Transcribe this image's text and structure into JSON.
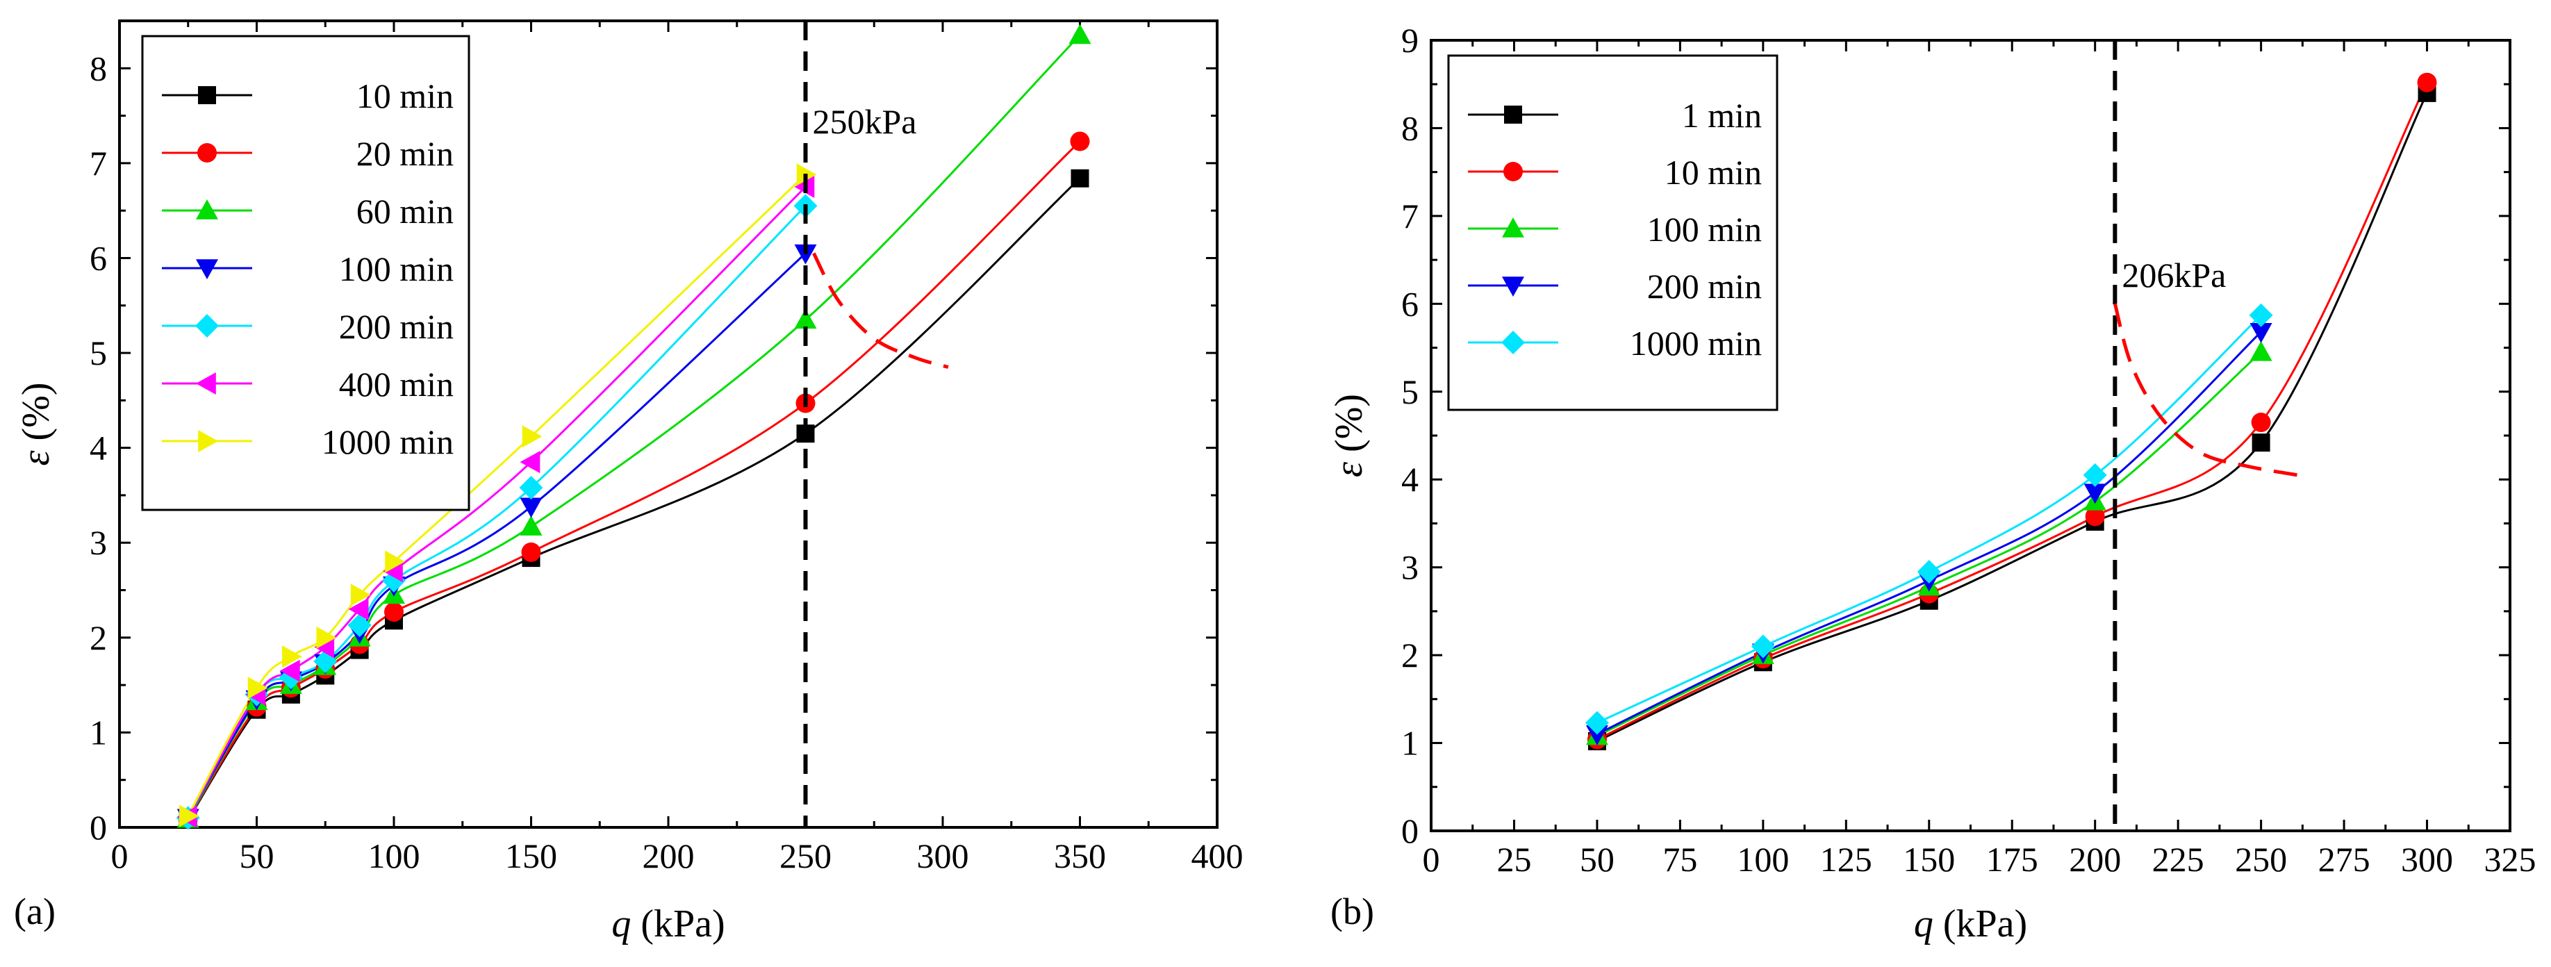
{
  "colors": {
    "black": "#000000",
    "red": "#ff0000",
    "green": "#00dd00",
    "blue": "#0000ee",
    "cyan": "#00e5ff",
    "magenta": "#ff00ff",
    "yellow": "#f2f200"
  },
  "chart_data": [
    {
      "type": "line",
      "panel_label": "(a)",
      "xlabel_var": "q",
      "xlabel_unit": " (kPa)",
      "ylabel_var": "ε",
      "ylabel_unit": " (%)",
      "xlim": [
        0,
        400
      ],
      "ylim": [
        0,
        8.5
      ],
      "xticks": [
        0,
        50,
        100,
        150,
        200,
        250,
        300,
        350,
        400
      ],
      "yticks": [
        0,
        1,
        2,
        3,
        4,
        5,
        6,
        7,
        8
      ],
      "vline": {
        "x": 250,
        "label": "250kPa"
      },
      "red_curve": [
        [
          253,
          6.05
        ],
        [
          262,
          5.55
        ],
        [
          275,
          5.15
        ],
        [
          290,
          4.95
        ],
        [
          302,
          4.85
        ]
      ],
      "legend_position": "top-left",
      "series": [
        {
          "name": "10 min",
          "marker": "square",
          "color": "#000000",
          "x": [
            25,
            50,
            62.5,
            75,
            87.5,
            100,
            150,
            250,
            350
          ],
          "y": [
            0.08,
            1.24,
            1.4,
            1.6,
            1.87,
            2.18,
            2.84,
            4.15,
            6.84
          ]
        },
        {
          "name": "20 min",
          "marker": "circle",
          "color": "#ff0000",
          "x": [
            25,
            50,
            62.5,
            75,
            87.5,
            100,
            150,
            250,
            350
          ],
          "y": [
            0.09,
            1.27,
            1.47,
            1.67,
            1.93,
            2.27,
            2.9,
            4.47,
            7.23
          ]
        },
        {
          "name": "60 min",
          "marker": "triangle-up",
          "color": "#00dd00",
          "x": [
            25,
            50,
            62.5,
            75,
            87.5,
            100,
            150,
            250,
            350
          ],
          "y": [
            0.09,
            1.33,
            1.5,
            1.7,
            2.0,
            2.45,
            3.17,
            5.35,
            8.35
          ]
        },
        {
          "name": "100 min",
          "marker": "triangle-down",
          "color": "#0000ee",
          "x": [
            25,
            50,
            62.5,
            75,
            87.5,
            100,
            150,
            250
          ],
          "y": [
            0.1,
            1.35,
            1.55,
            1.73,
            2.05,
            2.55,
            3.38,
            6.05
          ]
        },
        {
          "name": "200 min",
          "marker": "diamond",
          "color": "#00e5ff",
          "x": [
            25,
            50,
            62.5,
            75,
            87.5,
            100,
            150,
            250
          ],
          "y": [
            0.1,
            1.4,
            1.58,
            1.75,
            2.13,
            2.6,
            3.58,
            6.55
          ]
        },
        {
          "name": "400 min",
          "marker": "triangle-left",
          "color": "#ff00ff",
          "x": [
            25,
            50,
            62.5,
            75,
            87.5,
            100,
            150,
            250
          ],
          "y": [
            0.11,
            1.4,
            1.65,
            1.9,
            2.3,
            2.7,
            3.85,
            6.75
          ]
        },
        {
          "name": "1000 min",
          "marker": "triangle-right",
          "color": "#f2f200",
          "x": [
            25,
            50,
            62.5,
            75,
            87.5,
            100,
            150,
            250
          ],
          "y": [
            0.12,
            1.47,
            1.8,
            2.0,
            2.45,
            2.8,
            4.12,
            6.88
          ]
        }
      ]
    },
    {
      "type": "line",
      "panel_label": "(b)",
      "xlabel_var": "q",
      "xlabel_unit": " (kPa)",
      "ylabel_var": "ε",
      "ylabel_unit": " (%)",
      "xlim": [
        0,
        325
      ],
      "ylim": [
        0,
        9
      ],
      "xticks": [
        0,
        25,
        50,
        75,
        100,
        125,
        150,
        175,
        200,
        225,
        250,
        275,
        300,
        325
      ],
      "yticks": [
        0,
        1,
        2,
        3,
        4,
        5,
        6,
        7,
        8,
        9
      ],
      "vline": {
        "x": 206,
        "label": "206kPa"
      },
      "red_curve": [
        [
          206,
          6.0
        ],
        [
          211,
          5.3
        ],
        [
          220,
          4.7
        ],
        [
          232,
          4.3
        ],
        [
          246,
          4.15
        ],
        [
          261,
          4.05
        ]
      ],
      "legend_position": "top-left",
      "series": [
        {
          "name": "1 min",
          "marker": "square",
          "color": "#000000",
          "x": [
            50,
            100,
            150,
            200,
            250,
            300
          ],
          "y": [
            1.02,
            1.92,
            2.62,
            3.52,
            4.42,
            8.4
          ]
        },
        {
          "name": "10 min",
          "marker": "circle",
          "color": "#ff0000",
          "x": [
            50,
            100,
            150,
            200,
            250,
            300
          ],
          "y": [
            1.04,
            1.96,
            2.7,
            3.58,
            4.65,
            8.52
          ]
        },
        {
          "name": "100 min",
          "marker": "triangle-up",
          "color": "#00dd00",
          "x": [
            50,
            100,
            150,
            200,
            250
          ],
          "y": [
            1.08,
            2.0,
            2.78,
            3.75,
            5.45
          ]
        },
        {
          "name": "200 min",
          "marker": "triangle-down",
          "color": "#0000ee",
          "x": [
            50,
            100,
            150,
            200,
            250
          ],
          "y": [
            1.1,
            2.03,
            2.85,
            3.85,
            5.68
          ]
        },
        {
          "name": "1000 min",
          "marker": "diamond",
          "color": "#00e5ff",
          "x": [
            50,
            100,
            150,
            200,
            250
          ],
          "y": [
            1.23,
            2.1,
            2.95,
            4.05,
            5.87
          ]
        }
      ]
    }
  ]
}
